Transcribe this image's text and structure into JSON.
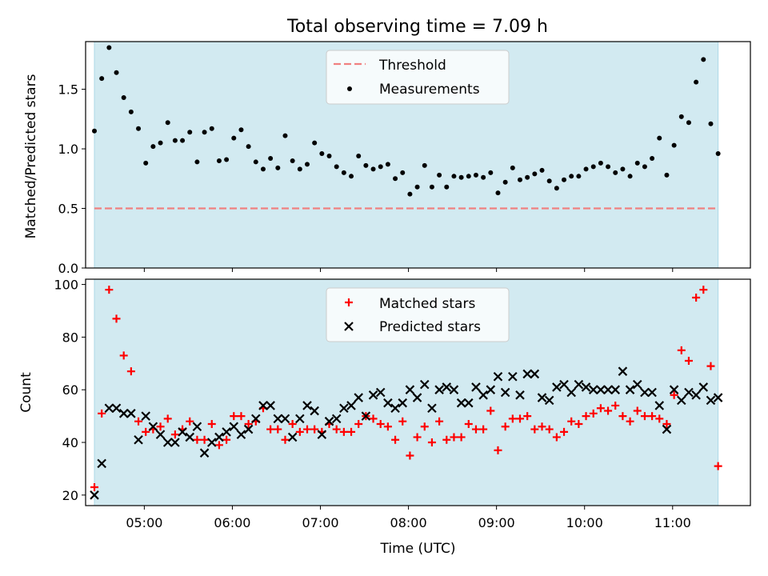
{
  "chart_data": [
    {
      "type": "scatter",
      "title": "Total observing time = 7.09 h",
      "xlabel": "",
      "ylabel": "Matched/Predicted stars",
      "xlim": [
        "04:20",
        "11:53"
      ],
      "ylim": [
        0,
        1.9
      ],
      "yticks": [
        "0.0",
        "0.5",
        "1.0",
        "1.5"
      ],
      "shaded_span": [
        "04:26",
        "11:31"
      ],
      "shade_color": "#add8e6",
      "legend_position": "upper center",
      "threshold": {
        "name": "Threshold",
        "value": 0.5,
        "color": "#f08080"
      },
      "series": [
        {
          "name": "Measurements",
          "color": "#000000",
          "points": [
            [
              "04:26",
              1.15
            ],
            [
              "04:31",
              1.59
            ],
            [
              "04:36",
              1.85
            ],
            [
              "04:41",
              1.64
            ],
            [
              "04:46",
              1.43
            ],
            [
              "04:51",
              1.31
            ],
            [
              "04:56",
              1.17
            ],
            [
              "05:01",
              0.88
            ],
            [
              "05:06",
              1.02
            ],
            [
              "05:11",
              1.05
            ],
            [
              "05:16",
              1.22
            ],
            [
              "05:21",
              1.07
            ],
            [
              "05:26",
              1.07
            ],
            [
              "05:31",
              1.14
            ],
            [
              "05:36",
              0.89
            ],
            [
              "05:41",
              1.14
            ],
            [
              "05:46",
              1.17
            ],
            [
              "05:51",
              0.9
            ],
            [
              "05:56",
              0.91
            ],
            [
              "06:01",
              1.09
            ],
            [
              "06:06",
              1.16
            ],
            [
              "06:11",
              1.02
            ],
            [
              "06:16",
              0.89
            ],
            [
              "06:21",
              0.83
            ],
            [
              "06:26",
              0.92
            ],
            [
              "06:31",
              0.84
            ],
            [
              "06:36",
              1.11
            ],
            [
              "06:41",
              0.9
            ],
            [
              "06:46",
              0.83
            ],
            [
              "06:51",
              0.87
            ],
            [
              "06:56",
              1.05
            ],
            [
              "07:01",
              0.96
            ],
            [
              "07:06",
              0.94
            ],
            [
              "07:11",
              0.85
            ],
            [
              "07:16",
              0.8
            ],
            [
              "07:21",
              0.77
            ],
            [
              "07:26",
              0.94
            ],
            [
              "07:31",
              0.86
            ],
            [
              "07:36",
              0.83
            ],
            [
              "07:41",
              0.85
            ],
            [
              "07:46",
              0.87
            ],
            [
              "07:51",
              0.75
            ],
            [
              "07:56",
              0.8
            ],
            [
              "08:01",
              0.62
            ],
            [
              "08:06",
              0.68
            ],
            [
              "08:11",
              0.86
            ],
            [
              "08:16",
              0.68
            ],
            [
              "08:21",
              0.78
            ],
            [
              "08:26",
              0.68
            ],
            [
              "08:31",
              0.77
            ],
            [
              "08:36",
              0.76
            ],
            [
              "08:41",
              0.77
            ],
            [
              "08:46",
              0.78
            ],
            [
              "08:51",
              0.76
            ],
            [
              "08:56",
              0.8
            ],
            [
              "09:01",
              0.63
            ],
            [
              "09:06",
              0.72
            ],
            [
              "09:11",
              0.84
            ],
            [
              "09:16",
              0.74
            ],
            [
              "09:21",
              0.76
            ],
            [
              "09:26",
              0.79
            ],
            [
              "09:31",
              0.82
            ],
            [
              "09:36",
              0.73
            ],
            [
              "09:41",
              0.67
            ],
            [
              "09:46",
              0.74
            ],
            [
              "09:51",
              0.77
            ],
            [
              "09:56",
              0.77
            ],
            [
              "10:01",
              0.83
            ],
            [
              "10:06",
              0.85
            ],
            [
              "10:11",
              0.88
            ],
            [
              "10:16",
              0.85
            ],
            [
              "10:21",
              0.8
            ],
            [
              "10:26",
              0.83
            ],
            [
              "10:31",
              0.77
            ],
            [
              "10:36",
              0.88
            ],
            [
              "10:41",
              0.85
            ],
            [
              "10:46",
              0.92
            ],
            [
              "10:51",
              1.09
            ],
            [
              "10:56",
              0.78
            ],
            [
              "11:01",
              1.03
            ],
            [
              "11:06",
              1.27
            ],
            [
              "11:11",
              1.22
            ],
            [
              "11:16",
              1.56
            ],
            [
              "11:21",
              1.75
            ],
            [
              "11:26",
              1.21
            ],
            [
              "11:31",
              0.96
            ]
          ]
        }
      ]
    },
    {
      "type": "scatter",
      "title": "",
      "xlabel": "Time (UTC)",
      "ylabel": "Count",
      "xlim": [
        "04:20",
        "11:53"
      ],
      "ylim": [
        16,
        102
      ],
      "yticks": [
        "20",
        "40",
        "60",
        "80",
        "100"
      ],
      "xticks": [
        "05:00",
        "06:00",
        "07:00",
        "08:00",
        "09:00",
        "10:00",
        "11:00"
      ],
      "shaded_span": [
        "04:26",
        "11:31"
      ],
      "shade_color": "#add8e6",
      "legend_position": "upper center",
      "series": [
        {
          "name": "Matched stars",
          "marker": "+",
          "color": "#ff0000",
          "points": [
            [
              "04:26",
              23
            ],
            [
              "04:31",
              51
            ],
            [
              "04:36",
              98
            ],
            [
              "04:41",
              87
            ],
            [
              "04:46",
              73
            ],
            [
              "04:51",
              67
            ],
            [
              "04:56",
              48
            ],
            [
              "05:01",
              44
            ],
            [
              "05:06",
              45
            ],
            [
              "05:11",
              46
            ],
            [
              "05:16",
              49
            ],
            [
              "05:21",
              43
            ],
            [
              "05:26",
              45
            ],
            [
              "05:31",
              48
            ],
            [
              "05:36",
              41
            ],
            [
              "05:41",
              41
            ],
            [
              "05:46",
              47
            ],
            [
              "05:51",
              39
            ],
            [
              "05:56",
              41
            ],
            [
              "06:01",
              50
            ],
            [
              "06:06",
              50
            ],
            [
              "06:11",
              47
            ],
            [
              "06:16",
              48
            ],
            [
              "06:21",
              53
            ],
            [
              "06:26",
              45
            ],
            [
              "06:31",
              45
            ],
            [
              "06:36",
              41
            ],
            [
              "06:41",
              47
            ],
            [
              "06:46",
              44
            ],
            [
              "06:51",
              45
            ],
            [
              "06:56",
              45
            ],
            [
              "07:01",
              44
            ],
            [
              "07:06",
              47
            ],
            [
              "07:11",
              45
            ],
            [
              "07:16",
              44
            ],
            [
              "07:21",
              44
            ],
            [
              "07:26",
              47
            ],
            [
              "07:31",
              50
            ],
            [
              "07:36",
              49
            ],
            [
              "07:41",
              47
            ],
            [
              "07:46",
              46
            ],
            [
              "07:51",
              41
            ],
            [
              "07:56",
              48
            ],
            [
              "08:01",
              35
            ],
            [
              "08:06",
              42
            ],
            [
              "08:11",
              46
            ],
            [
              "08:16",
              40
            ],
            [
              "08:21",
              48
            ],
            [
              "08:26",
              41
            ],
            [
              "08:31",
              42
            ],
            [
              "08:36",
              42
            ],
            [
              "08:41",
              47
            ],
            [
              "08:46",
              45
            ],
            [
              "08:51",
              45
            ],
            [
              "08:56",
              52
            ],
            [
              "09:01",
              37
            ],
            [
              "09:06",
              46
            ],
            [
              "09:11",
              49
            ],
            [
              "09:16",
              49
            ],
            [
              "09:21",
              50
            ],
            [
              "09:26",
              45
            ],
            [
              "09:31",
              46
            ],
            [
              "09:36",
              45
            ],
            [
              "09:41",
              42
            ],
            [
              "09:46",
              44
            ],
            [
              "09:51",
              48
            ],
            [
              "09:56",
              47
            ],
            [
              "10:01",
              50
            ],
            [
              "10:06",
              51
            ],
            [
              "10:11",
              53
            ],
            [
              "10:16",
              52
            ],
            [
              "10:21",
              54
            ],
            [
              "10:26",
              50
            ],
            [
              "10:31",
              48
            ],
            [
              "10:36",
              52
            ],
            [
              "10:41",
              50
            ],
            [
              "10:46",
              50
            ],
            [
              "10:51",
              49
            ],
            [
              "10:56",
              47
            ],
            [
              "11:01",
              58
            ],
            [
              "11:06",
              75
            ],
            [
              "11:11",
              71
            ],
            [
              "11:16",
              95
            ],
            [
              "11:21",
              98
            ],
            [
              "11:26",
              69
            ],
            [
              "11:31",
              31
            ]
          ]
        },
        {
          "name": "Predicted stars",
          "marker": "x",
          "color": "#000000",
          "points": [
            [
              "04:26",
              20
            ],
            [
              "04:31",
              32
            ],
            [
              "04:36",
              53
            ],
            [
              "04:41",
              53
            ],
            [
              "04:46",
              51
            ],
            [
              "04:51",
              51
            ],
            [
              "04:56",
              41
            ],
            [
              "05:01",
              50
            ],
            [
              "05:06",
              46
            ],
            [
              "05:11",
              43
            ],
            [
              "05:16",
              40
            ],
            [
              "05:21",
              40
            ],
            [
              "05:26",
              44
            ],
            [
              "05:31",
              42
            ],
            [
              "05:36",
              46
            ],
            [
              "05:41",
              36
            ],
            [
              "05:46",
              40
            ],
            [
              "05:51",
              42
            ],
            [
              "05:56",
              44
            ],
            [
              "06:01",
              46
            ],
            [
              "06:06",
              43
            ],
            [
              "06:11",
              45
            ],
            [
              "06:16",
              49
            ],
            [
              "06:21",
              54
            ],
            [
              "06:26",
              54
            ],
            [
              "06:31",
              49
            ],
            [
              "06:36",
              49
            ],
            [
              "06:41",
              42
            ],
            [
              "06:46",
              49
            ],
            [
              "06:51",
              54
            ],
            [
              "06:56",
              52
            ],
            [
              "07:01",
              43
            ],
            [
              "07:06",
              48
            ],
            [
              "07:11",
              49
            ],
            [
              "07:16",
              53
            ],
            [
              "07:21",
              54
            ],
            [
              "07:26",
              57
            ],
            [
              "07:31",
              50
            ],
            [
              "07:36",
              58
            ],
            [
              "07:41",
              59
            ],
            [
              "07:46",
              55
            ],
            [
              "07:51",
              53
            ],
            [
              "07:56",
              55
            ],
            [
              "08:01",
              60
            ],
            [
              "08:06",
              57
            ],
            [
              "08:11",
              62
            ],
            [
              "08:16",
              53
            ],
            [
              "08:21",
              60
            ],
            [
              "08:26",
              61
            ],
            [
              "08:31",
              60
            ],
            [
              "08:36",
              55
            ],
            [
              "08:41",
              55
            ],
            [
              "08:46",
              61
            ],
            [
              "08:51",
              58
            ],
            [
              "08:56",
              60
            ],
            [
              "09:01",
              65
            ],
            [
              "09:06",
              59
            ],
            [
              "09:11",
              65
            ],
            [
              "09:16",
              58
            ],
            [
              "09:21",
              66
            ],
            [
              "09:26",
              66
            ],
            [
              "09:31",
              57
            ],
            [
              "09:36",
              56
            ],
            [
              "09:41",
              61
            ],
            [
              "09:46",
              62
            ],
            [
              "09:51",
              59
            ],
            [
              "09:56",
              62
            ],
            [
              "10:01",
              61
            ],
            [
              "10:06",
              60
            ],
            [
              "10:11",
              60
            ],
            [
              "10:16",
              60
            ],
            [
              "10:21",
              60
            ],
            [
              "10:26",
              67
            ],
            [
              "10:31",
              60
            ],
            [
              "10:36",
              62
            ],
            [
              "10:41",
              59
            ],
            [
              "10:46",
              59
            ],
            [
              "10:51",
              54
            ],
            [
              "10:56",
              45
            ],
            [
              "11:01",
              60
            ],
            [
              "11:06",
              56
            ],
            [
              "11:11",
              59
            ],
            [
              "11:16",
              58
            ],
            [
              "11:21",
              61
            ],
            [
              "11:26",
              56
            ],
            [
              "11:31",
              57
            ]
          ]
        }
      ],
      "last_point_overlap": [
        "11:31",
        32
      ]
    }
  ]
}
